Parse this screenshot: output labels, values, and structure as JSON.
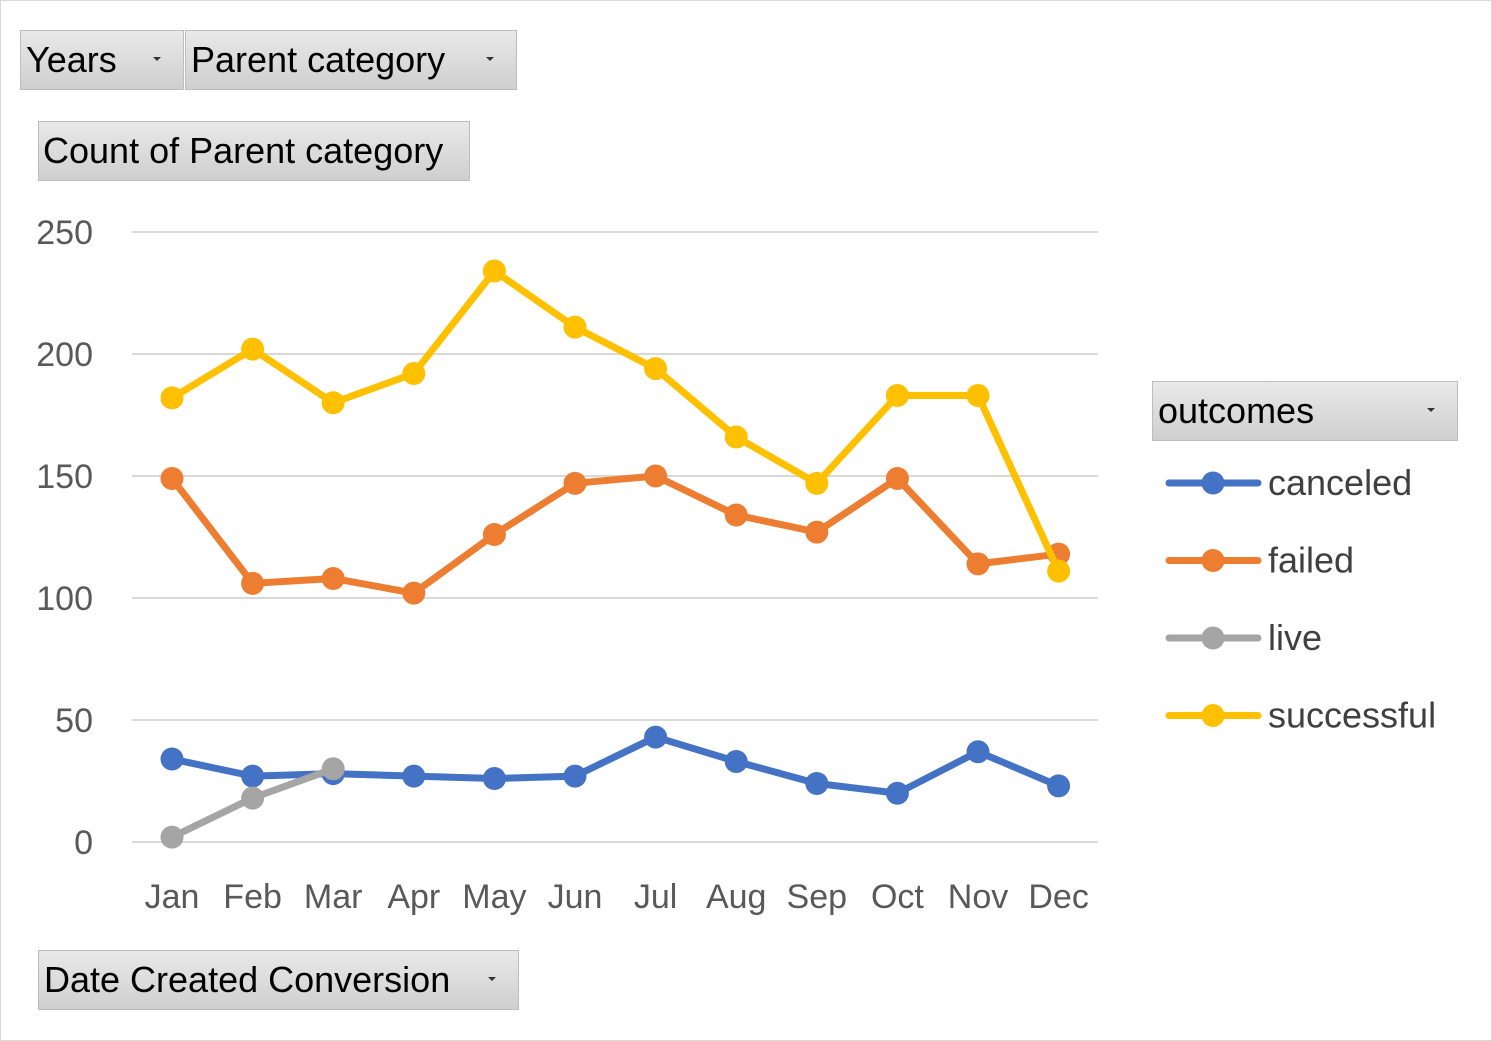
{
  "filters": {
    "years_label": "Years",
    "parent_category_label": "Parent category",
    "value_field_label": "Count of Parent category",
    "axis_field_label": "Date Created Conversion"
  },
  "legend": {
    "title": "outcomes"
  },
  "chart_data": {
    "type": "line",
    "title": "",
    "xlabel": "",
    "ylabel": "",
    "categories": [
      "Jan",
      "Feb",
      "Mar",
      "Apr",
      "May",
      "Jun",
      "Jul",
      "Aug",
      "Sep",
      "Oct",
      "Nov",
      "Dec"
    ],
    "ylim": [
      0,
      250
    ],
    "yticks": [
      0,
      50,
      100,
      150,
      200,
      250
    ],
    "grid": true,
    "legend_position": "right",
    "series": [
      {
        "name": "canceled",
        "color": "#4472C4",
        "values": [
          34,
          27,
          28,
          27,
          26,
          27,
          43,
          33,
          24,
          20,
          37,
          23
        ]
      },
      {
        "name": "failed",
        "color": "#ED7D31",
        "values": [
          149,
          106,
          108,
          102,
          126,
          147,
          150,
          134,
          127,
          149,
          114,
          118
        ]
      },
      {
        "name": "live",
        "color": "#A5A5A5",
        "values": [
          2,
          18,
          30,
          null,
          null,
          null,
          null,
          null,
          null,
          null,
          null,
          null
        ]
      },
      {
        "name": "successful",
        "color": "#FFC000",
        "values": [
          182,
          202,
          180,
          192,
          234,
          211,
          194,
          166,
          147,
          183,
          183,
          111
        ]
      }
    ]
  }
}
